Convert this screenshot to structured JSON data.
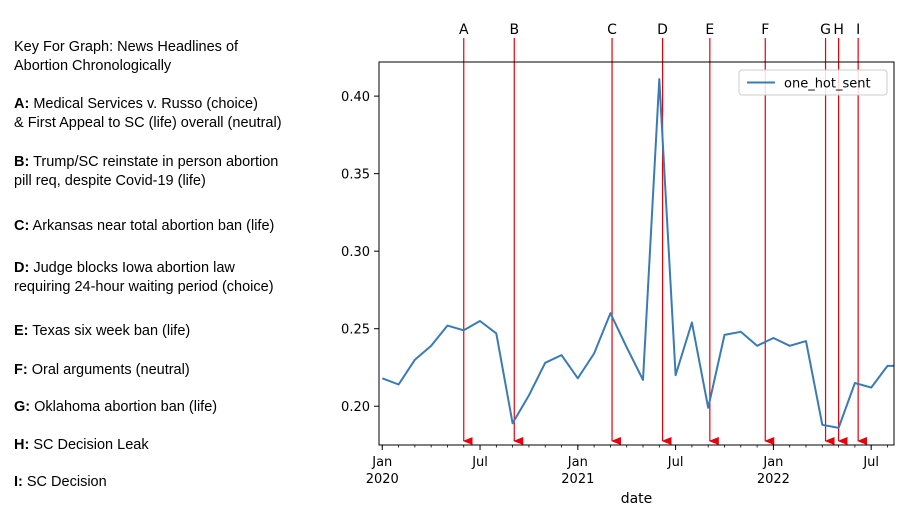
{
  "key": {
    "title_line1": "Key For Graph: News Headlines of",
    "title_line2": "Abortion Chronologically",
    "items": [
      {
        "letter": "A:",
        "line1": "Medical Services v. Russo (choice)",
        "line2": "& First Appeal to SC (life) overall (neutral)"
      },
      {
        "letter": "B:",
        "line1": "Trump/SC reinstate in person abortion",
        "line2": "pill req, despite Covid-19 (life)"
      },
      {
        "letter": "C:",
        "line1": "Arkansas near total abortion ban (life)",
        "line2": ""
      },
      {
        "letter": "D:",
        "line1": "Judge blocks Iowa abortion law",
        "line2": "requiring 24-hour waiting period (choice)"
      },
      {
        "letter": "E:",
        "line1": "Texas six week ban (life)",
        "line2": ""
      },
      {
        "letter": "F:",
        "line1": "Oral arguments (neutral)",
        "line2": ""
      },
      {
        "letter": "G:",
        "line1": "Oklahoma abortion ban (life)",
        "line2": ""
      },
      {
        "letter": "H:",
        "line1": "SC Decision Leak",
        "line2": ""
      },
      {
        "letter": "I:",
        "line1": "SC Decision",
        "line2": ""
      }
    ]
  },
  "chart_data": {
    "type": "line",
    "title": "",
    "xlabel": "date",
    "ylabel": "",
    "xlim": [
      -0.2,
      31.4
    ],
    "ylim": [
      0.175,
      0.422
    ],
    "yticks": [
      0.2,
      0.25,
      0.3,
      0.35,
      0.4
    ],
    "ytick_labels": [
      "0.20",
      "0.25",
      "0.30",
      "0.35",
      "0.40"
    ],
    "xticks": [
      {
        "t": 0,
        "label1": "Jan",
        "label2": "2020"
      },
      {
        "t": 6,
        "label1": "Jul",
        "label2": ""
      },
      {
        "t": 12,
        "label1": "Jan",
        "label2": "2021"
      },
      {
        "t": 18,
        "label1": "Jul",
        "label2": ""
      },
      {
        "t": 24,
        "label1": "Jan",
        "label2": "2022"
      },
      {
        "t": 30,
        "label1": "Jul",
        "label2": ""
      }
    ],
    "grid": false,
    "legend_position": "top-right",
    "line_color": "#3a7bb5",
    "annotation_color": "#e8000b",
    "series": [
      {
        "name": "one_hot_sent",
        "x": [
          0,
          1,
          2,
          3,
          4,
          5,
          6,
          7,
          8,
          9,
          10,
          11,
          12,
          13,
          14,
          15,
          16,
          17,
          18,
          19,
          20,
          21,
          22,
          23,
          24,
          25,
          26,
          27,
          28,
          29,
          30,
          31,
          32
        ],
        "values": [
          0.218,
          0.214,
          0.23,
          0.239,
          0.252,
          0.249,
          0.255,
          0.247,
          0.189,
          0.207,
          0.228,
          0.233,
          0.218,
          0.234,
          0.26,
          0.238,
          0.217,
          0.411,
          0.22,
          0.254,
          0.199,
          0.246,
          0.248,
          0.239,
          0.244,
          0.239,
          0.242,
          0.188,
          0.186,
          0.215,
          0.212,
          0.226,
          0.226
        ]
      }
    ],
    "annotations": [
      {
        "label": "A",
        "t": 5.0
      },
      {
        "label": "B",
        "t": 8.1
      },
      {
        "label": "C",
        "t": 14.1
      },
      {
        "label": "D",
        "t": 17.2
      },
      {
        "label": "E",
        "t": 20.1
      },
      {
        "label": "F",
        "t": 23.5
      },
      {
        "label": "G",
        "t": 27.2
      },
      {
        "label": "H",
        "t": 28.0
      },
      {
        "label": "I",
        "t": 29.2
      }
    ]
  }
}
